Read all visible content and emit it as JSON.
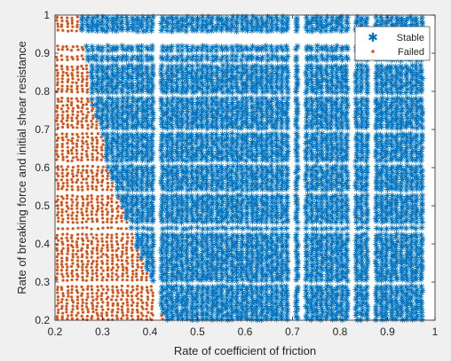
{
  "chart_data": {
    "type": "scatter",
    "xlabel": "Rate of coefficient of friction",
    "ylabel": "Rate of breaking force and initial shear resistance",
    "xlim": [
      0.2,
      1.0
    ],
    "ylim": [
      0.2,
      1.0
    ],
    "xticks": [
      "0.2",
      "0.3",
      "0.4",
      "0.5",
      "0.6",
      "0.7",
      "0.8",
      "0.9",
      "1"
    ],
    "yticks": [
      "0.2",
      "0.3",
      "0.4",
      "0.5",
      "0.6",
      "0.7",
      "0.8",
      "0.9",
      "1"
    ],
    "grid": false,
    "legend_position": "top-right",
    "series": [
      {
        "name": "Stable",
        "marker": "*",
        "color": "#0072BD",
        "region": "x above the failure boundary",
        "x_range": [
          0.25,
          0.99
        ],
        "y_range": [
          0.2,
          1.0
        ]
      },
      {
        "name": "Failed",
        "marker": ".",
        "color": "#D95319",
        "region": "x below the failure boundary",
        "x_range": [
          0.2,
          0.43
        ],
        "y_range": [
          0.2,
          1.0
        ]
      }
    ],
    "boundary": [
      {
        "y": 0.2,
        "x": 0.43
      },
      {
        "y": 0.25,
        "x": 0.42
      },
      {
        "y": 0.3,
        "x": 0.4
      },
      {
        "y": 0.4,
        "x": 0.37
      },
      {
        "y": 0.5,
        "x": 0.34
      },
      {
        "y": 0.6,
        "x": 0.31
      },
      {
        "y": 0.7,
        "x": 0.3
      },
      {
        "y": 0.75,
        "x": 0.28
      },
      {
        "y": 0.85,
        "x": 0.27
      },
      {
        "y": 1.0,
        "x": 0.25
      }
    ]
  }
}
